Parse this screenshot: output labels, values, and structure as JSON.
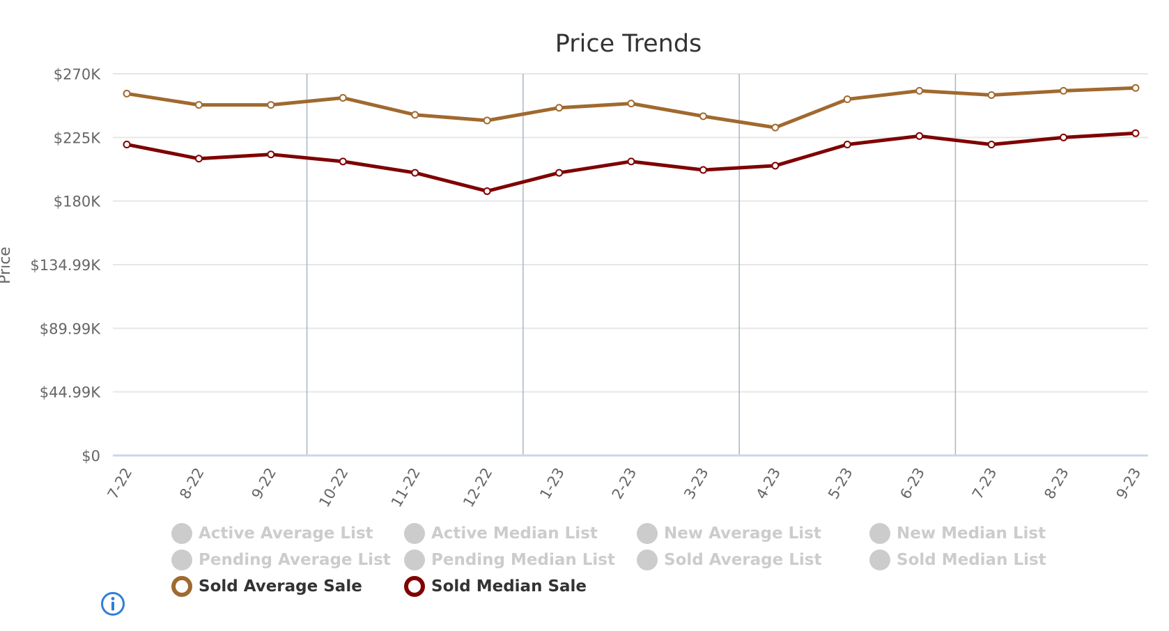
{
  "chart_data": {
    "type": "line",
    "title": "Price Trends",
    "xlabel": "",
    "ylabel": "Price",
    "categories": [
      "7-22",
      "8-22",
      "9-22",
      "10-22",
      "11-22",
      "12-22",
      "1-23",
      "2-23",
      "3-23",
      "4-23",
      "5-23",
      "6-23",
      "7-23",
      "8-23",
      "9-23"
    ],
    "yticks": [
      "$0",
      "$44.99K",
      "$89.99K",
      "$134.99K",
      "$180K",
      "$225K",
      "$270K"
    ],
    "ylim": [
      0,
      270000
    ],
    "grid": true,
    "legend_position": "bottom",
    "series": [
      {
        "name": "Sold Average Sale",
        "color": "#A0692E",
        "values": [
          256000,
          248000,
          248000,
          253000,
          241000,
          237000,
          246000,
          249000,
          240000,
          232000,
          252000,
          258000,
          255000,
          258000,
          260000
        ]
      },
      {
        "name": "Sold Median Sale",
        "color": "#7F0000",
        "values": [
          220000,
          210000,
          213000,
          208000,
          200000,
          187000,
          200000,
          208000,
          202000,
          205000,
          220000,
          226000,
          220000,
          225000,
          228000
        ]
      }
    ]
  },
  "legend": {
    "items": [
      {
        "label": "Active Average List",
        "active": false
      },
      {
        "label": "Active Median List",
        "active": false
      },
      {
        "label": "New Average List",
        "active": false
      },
      {
        "label": "New Median List",
        "active": false
      },
      {
        "label": "Pending Average List",
        "active": false
      },
      {
        "label": "Pending Median List",
        "active": false
      },
      {
        "label": "Sold Average List",
        "active": false
      },
      {
        "label": "Sold Median List",
        "active": false
      },
      {
        "label": "Sold Average Sale",
        "active": true,
        "color": "#A0692E"
      },
      {
        "label": "Sold Median Sale",
        "active": true,
        "color": "#7F0000"
      }
    ]
  },
  "colors": {
    "grid": "#e6e6e6",
    "plot_band_line": "#a8b4c4",
    "inactive": "#cccccc",
    "info_icon": "#2f7ed8"
  },
  "info_icon": "info-icon"
}
